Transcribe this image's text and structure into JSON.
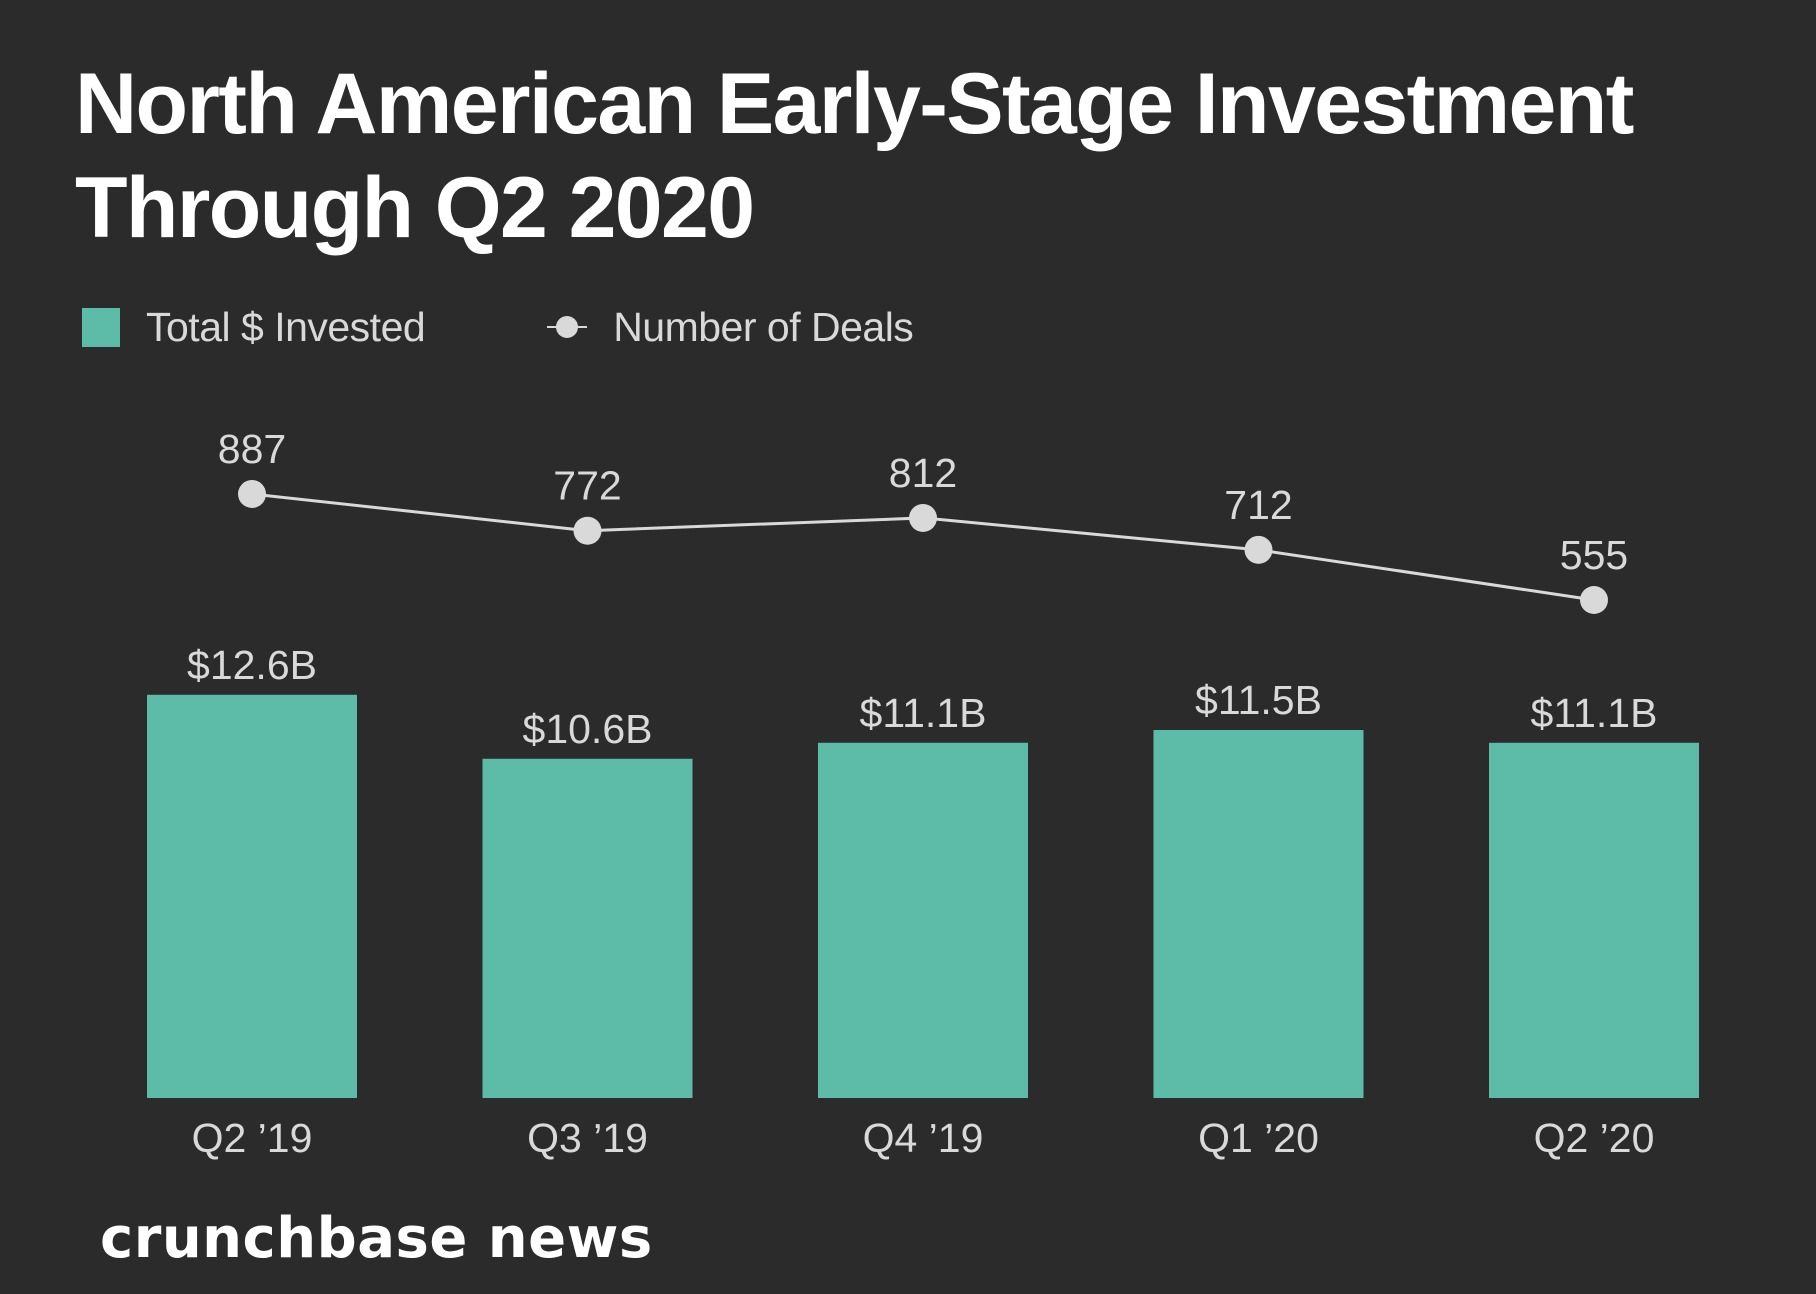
{
  "chart_data": {
    "type": "bar",
    "title": "North American Early-Stage Investment Through Q2 2020",
    "title_lines": [
      "North American Early-Stage Investment",
      "Through Q2 2020"
    ],
    "categories": [
      "Q2 ’19",
      "Q3 ’19",
      "Q4 ’19",
      "Q1 ’20",
      "Q2 ’20"
    ],
    "series": [
      {
        "name": "Total $ Invested",
        "type": "bar",
        "unit": "$B",
        "values": [
          12.6,
          10.6,
          11.1,
          11.5,
          11.1
        ],
        "labels": [
          "$12.6B",
          "$10.6B",
          "$11.1B",
          "$11.5B",
          "$11.1B"
        ],
        "color": "#5dbca8"
      },
      {
        "name": "Number of Deals",
        "type": "line",
        "values": [
          887,
          772,
          812,
          712,
          555
        ],
        "labels": [
          "887",
          "772",
          "812",
          "712",
          "555"
        ],
        "color": "#d9d9d9"
      }
    ],
    "xlabel": "",
    "ylabel": "",
    "ylim_bar": [
      0,
      12.6
    ],
    "grid": false,
    "legend_placement": "top-left"
  },
  "legend": {
    "bar_label": "Total $ Invested",
    "line_label": "Number of Deals"
  },
  "branding": {
    "logo_text": "crunchbase news"
  },
  "colors": {
    "background": "#2b2b2b",
    "bar": "#5dbca8",
    "line": "#d9d9d9",
    "text": "#d9d9d9",
    "title": "#ffffff"
  }
}
